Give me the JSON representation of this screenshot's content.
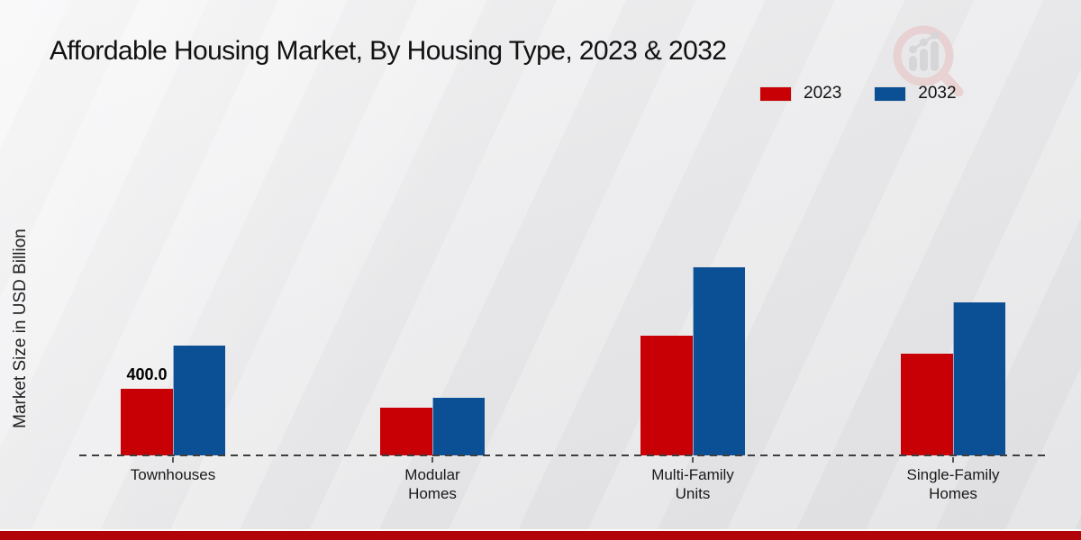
{
  "header": {
    "title": "Affordable Housing Market, By Housing Type, 2023 & 2032"
  },
  "legend": {
    "items": [
      {
        "label": "2023",
        "color": "#c80005"
      },
      {
        "label": "2032",
        "color": "#0b4f94"
      }
    ]
  },
  "y_axis": {
    "label": "Market Size in USD Billion"
  },
  "chart_data": {
    "type": "bar",
    "title": "Affordable Housing Market, By Housing Type, 2023 & 2032",
    "xlabel": "",
    "ylabel": "Market Size in USD Billion",
    "unit": "USD Billion",
    "categories": [
      "Townhouses",
      "Modular Homes",
      "Multi-Family Units",
      "Single-Family Homes"
    ],
    "category_label_lines": [
      [
        "Townhouses"
      ],
      [
        "Modular",
        "Homes"
      ],
      [
        "Multi-Family",
        "Units"
      ],
      [
        "Single-Family",
        "Homes"
      ]
    ],
    "series": [
      {
        "name": "2023",
        "color": "#c80005",
        "values": [
          400,
          285,
          720,
          610
        ]
      },
      {
        "name": "2032",
        "color": "#0b4f94",
        "values": [
          660,
          345,
          1130,
          920
        ]
      }
    ],
    "bar_value_labels": [
      {
        "category": "Townhouses",
        "series": "2023",
        "text": "400.0"
      }
    ],
    "ylim": [
      0,
      1250
    ],
    "grid": false,
    "axis_style": "dashed-baseline-only",
    "legend_position": "top-right"
  },
  "footer": {
    "accent_color": "#b20309"
  },
  "watermark": {
    "name": "magnifier-bar-chart-logo"
  }
}
